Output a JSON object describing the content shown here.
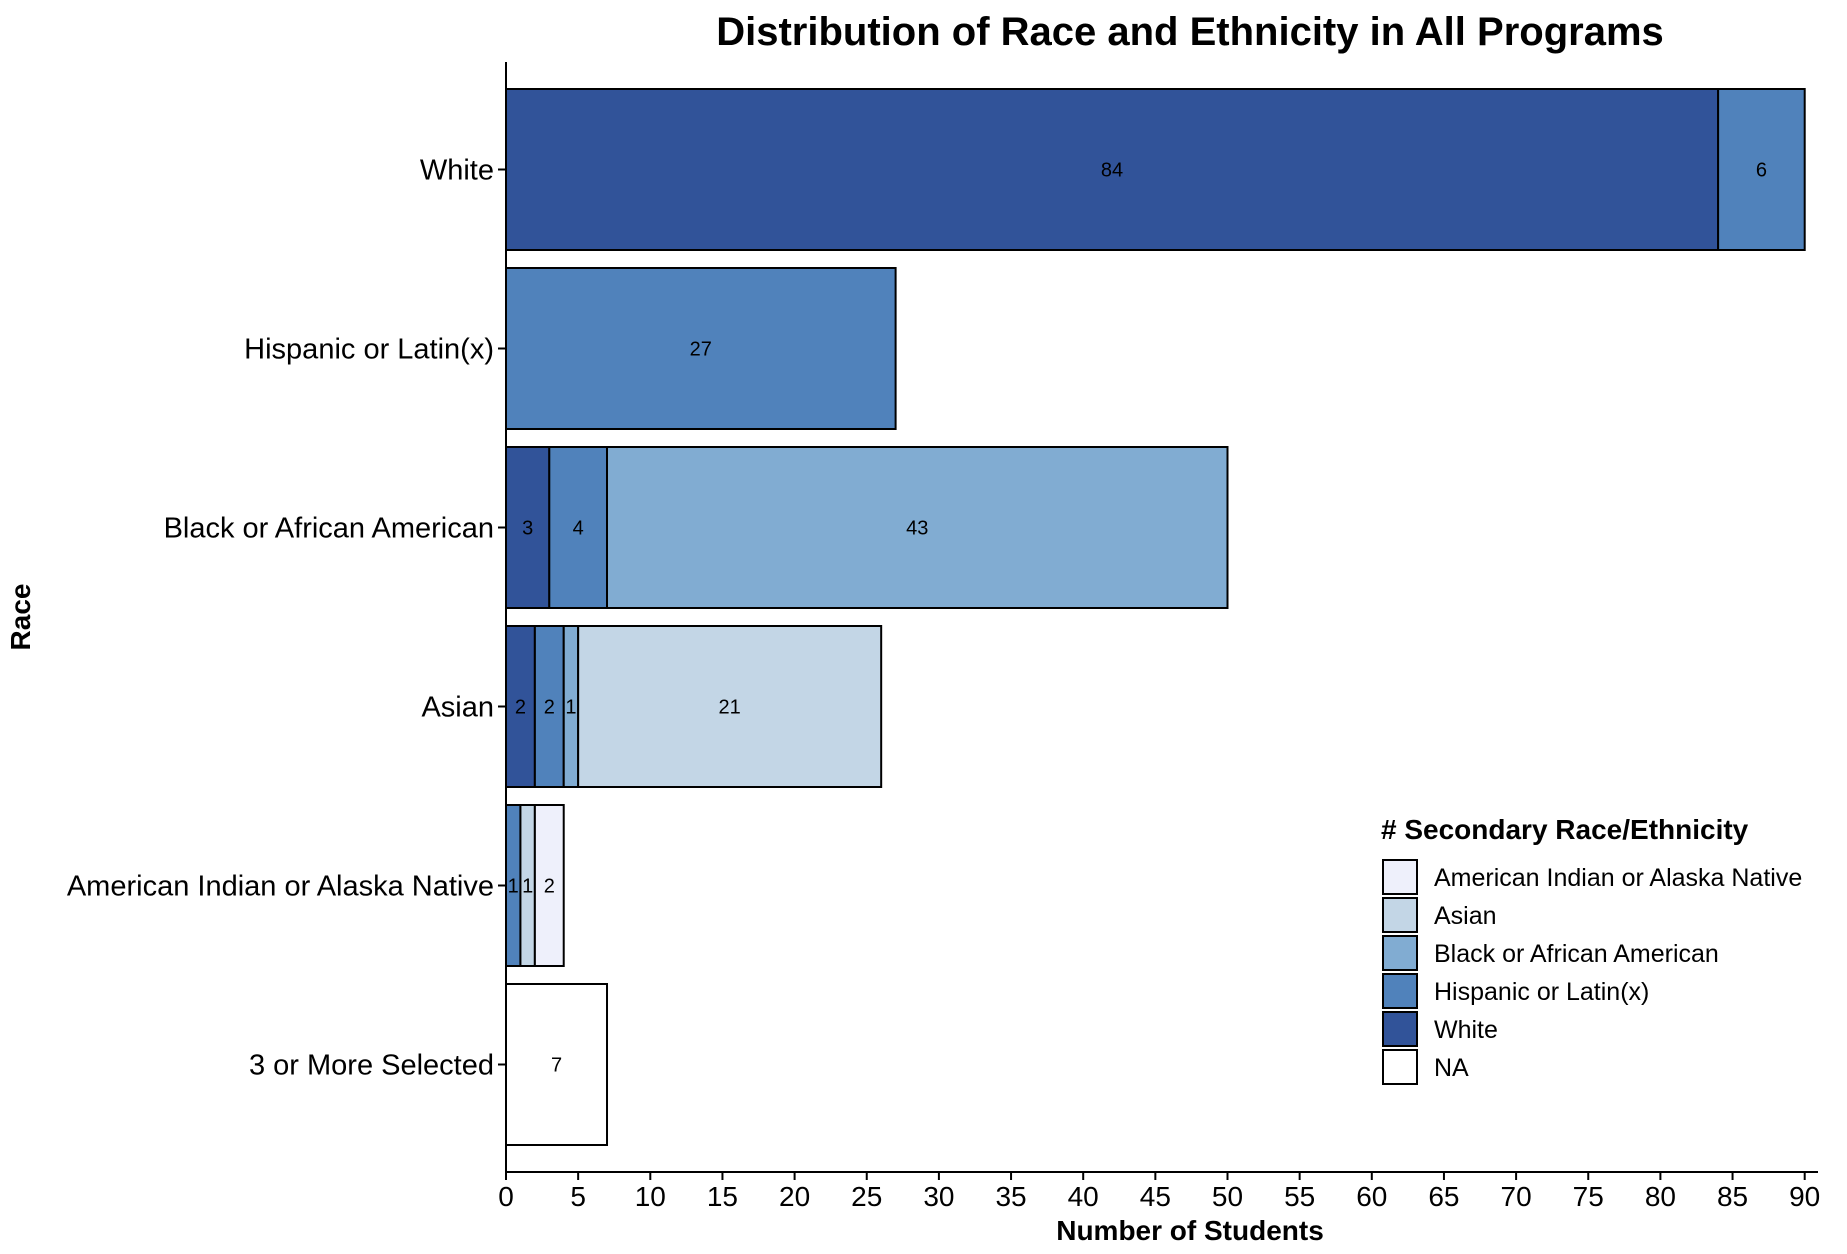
{
  "chart_data": {
    "type": "bar",
    "orientation": "horizontal",
    "stacked": true,
    "title": "Distribution of Race and Ethnicity in All Programs",
    "xlabel": "Number of Students",
    "ylabel": "Race",
    "xlim": [
      0,
      93
    ],
    "xticks": [
      0,
      5,
      10,
      15,
      20,
      25,
      30,
      35,
      40,
      45,
      50,
      55,
      60,
      65,
      70,
      75,
      80,
      85,
      90
    ],
    "categories": [
      "White",
      "Hispanic or Latin(x)",
      "Black or African American",
      "Asian",
      "American Indian or Alaska Native",
      "3 or More Selected"
    ],
    "legend": {
      "title": "# Secondary Race/Ethnicity",
      "position": "right",
      "entries": [
        {
          "name": "American Indian or Alaska Native",
          "color": "#eef0fb"
        },
        {
          "name": "Asian",
          "color": "#c3d6e6"
        },
        {
          "name": "Black or African American",
          "color": "#81acd2"
        },
        {
          "name": "Hispanic or Latin(x)",
          "color": "#5082bb"
        },
        {
          "name": "White",
          "color": "#315399"
        },
        {
          "name": "NA",
          "color": "#ffffff"
        }
      ]
    },
    "bars": [
      {
        "category": "White",
        "segments": [
          {
            "secondary": "White",
            "value": 84
          },
          {
            "secondary": "Hispanic or Latin(x)",
            "value": 6
          }
        ]
      },
      {
        "category": "Hispanic or Latin(x)",
        "segments": [
          {
            "secondary": "Hispanic or Latin(x)",
            "value": 27
          }
        ]
      },
      {
        "category": "Black or African American",
        "segments": [
          {
            "secondary": "White",
            "value": 3
          },
          {
            "secondary": "Hispanic or Latin(x)",
            "value": 4
          },
          {
            "secondary": "Black or African American",
            "value": 43
          }
        ]
      },
      {
        "category": "Asian",
        "segments": [
          {
            "secondary": "White",
            "value": 2
          },
          {
            "secondary": "Hispanic or Latin(x)",
            "value": 2
          },
          {
            "secondary": "Black or African American",
            "value": 1
          },
          {
            "secondary": "Asian",
            "value": 21
          }
        ]
      },
      {
        "category": "American Indian or Alaska Native",
        "segments": [
          {
            "secondary": "Hispanic or Latin(x)",
            "value": 1
          },
          {
            "secondary": "Asian",
            "value": 1
          },
          {
            "secondary": "American Indian or Alaska Native",
            "value": 2
          }
        ]
      },
      {
        "category": "3 or More Selected",
        "segments": [
          {
            "secondary": "NA",
            "value": 7
          }
        ]
      }
    ]
  }
}
